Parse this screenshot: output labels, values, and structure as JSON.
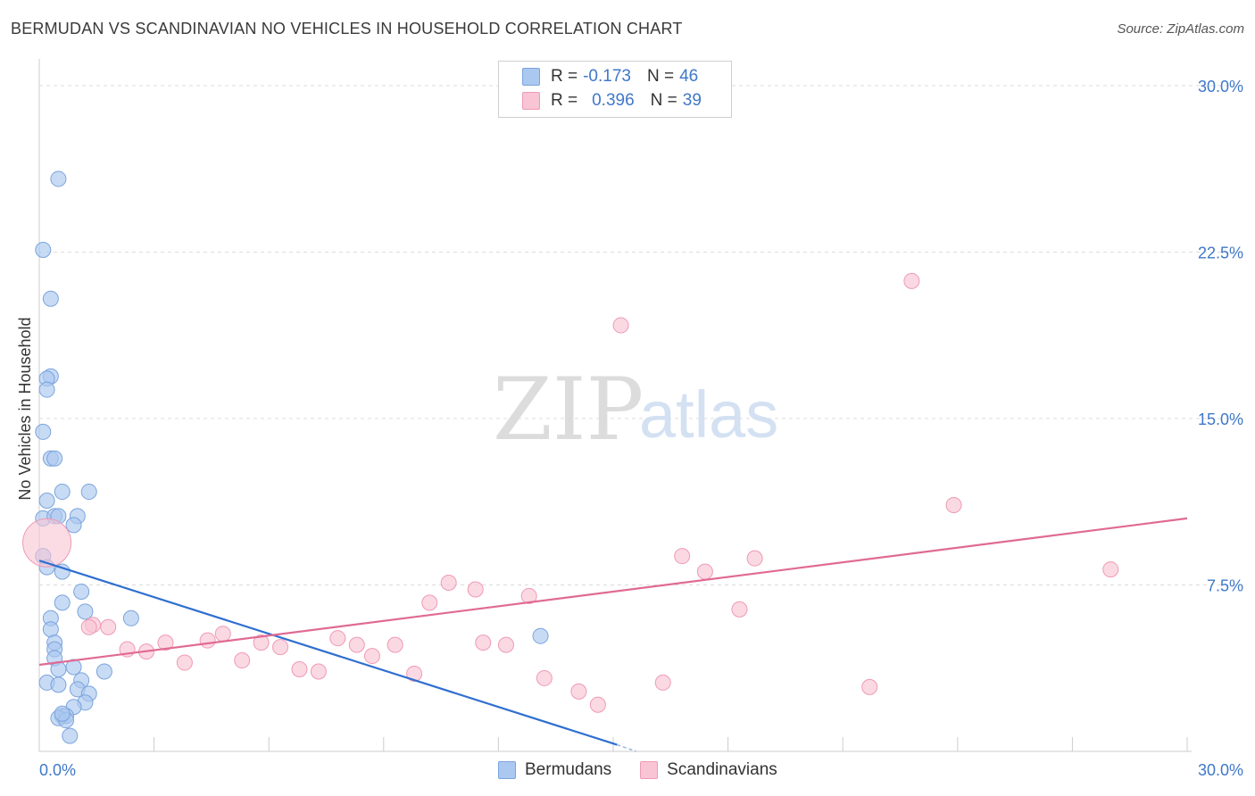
{
  "title": "BERMUDAN VS SCANDINAVIAN NO VEHICLES IN HOUSEHOLD CORRELATION CHART",
  "source": "Source: ZipAtlas.com",
  "watermark": {
    "zip": "ZIP",
    "atlas": "atlas"
  },
  "legend": {
    "rows": [
      {
        "r_label": "R =",
        "r_value": "-0.173",
        "n_label": "N =",
        "n_value": "46",
        "color": "#aac8f0",
        "border": "#7ba4dc"
      },
      {
        "r_label": "R =",
        "r_value": "0.396",
        "n_label": "N =",
        "n_value": "39",
        "color": "#f9c4d4",
        "border": "#ee9ab6"
      }
    ],
    "bottom": [
      {
        "label": "Bermudans",
        "color": "#aac8f0",
        "border": "#7ba4dc"
      },
      {
        "label": "Scandinavians",
        "color": "#f9c4d4",
        "border": "#ee9ab6"
      }
    ]
  },
  "chart_data": {
    "type": "scatter",
    "title": "BERMUDAN VS SCANDINAVIAN NO VEHICLES IN HOUSEHOLD CORRELATION CHART",
    "xlabel": "",
    "ylabel": "No Vehicles in Household",
    "xlim": [
      0,
      30
    ],
    "ylim": [
      0,
      30
    ],
    "x_tick_labels": [
      "0.0%",
      "30.0%"
    ],
    "y_tick_labels": [
      "7.5%",
      "15.0%",
      "22.5%",
      "30.0%"
    ],
    "y_ticks": [
      7.5,
      15.0,
      22.5,
      30.0
    ],
    "grid": true,
    "series": [
      {
        "name": "Bermudans",
        "color": "#aac8f0",
        "stroke": "#7ba4dc",
        "line_color": "#2f6fd0",
        "trend": {
          "x": [
            0,
            15.1
          ],
          "y": [
            8.6,
            0.3
          ]
        },
        "trend_dash": {
          "x": [
            15.1,
            15.6
          ],
          "y": [
            0.3,
            0.0
          ]
        },
        "points": [
          {
            "x": 0.5,
            "y": 25.8
          },
          {
            "x": 0.1,
            "y": 22.6
          },
          {
            "x": 0.3,
            "y": 20.4
          },
          {
            "x": 0.3,
            "y": 16.9
          },
          {
            "x": 0.2,
            "y": 16.8
          },
          {
            "x": 0.2,
            "y": 16.3
          },
          {
            "x": 0.1,
            "y": 14.4
          },
          {
            "x": 0.3,
            "y": 13.2
          },
          {
            "x": 0.4,
            "y": 13.2
          },
          {
            "x": 0.6,
            "y": 11.7
          },
          {
            "x": 1.3,
            "y": 11.7
          },
          {
            "x": 0.2,
            "y": 11.3
          },
          {
            "x": 0.1,
            "y": 10.5
          },
          {
            "x": 0.4,
            "y": 10.6
          },
          {
            "x": 0.5,
            "y": 10.6
          },
          {
            "x": 1.0,
            "y": 10.6
          },
          {
            "x": 0.9,
            "y": 10.2
          },
          {
            "x": 0.1,
            "y": 8.8
          },
          {
            "x": 0.2,
            "y": 8.3
          },
          {
            "x": 0.6,
            "y": 8.1
          },
          {
            "x": 1.1,
            "y": 7.2
          },
          {
            "x": 0.6,
            "y": 6.7
          },
          {
            "x": 1.2,
            "y": 6.3
          },
          {
            "x": 2.4,
            "y": 6.0
          },
          {
            "x": 0.3,
            "y": 6.0
          },
          {
            "x": 0.3,
            "y": 5.5
          },
          {
            "x": 0.4,
            "y": 4.9
          },
          {
            "x": 0.4,
            "y": 4.6
          },
          {
            "x": 0.4,
            "y": 4.2
          },
          {
            "x": 0.9,
            "y": 3.8
          },
          {
            "x": 0.5,
            "y": 3.7
          },
          {
            "x": 1.7,
            "y": 3.6
          },
          {
            "x": 0.2,
            "y": 3.1
          },
          {
            "x": 0.5,
            "y": 3.0
          },
          {
            "x": 1.1,
            "y": 3.2
          },
          {
            "x": 1.0,
            "y": 2.8
          },
          {
            "x": 1.3,
            "y": 2.6
          },
          {
            "x": 1.2,
            "y": 2.2
          },
          {
            "x": 0.9,
            "y": 2.0
          },
          {
            "x": 0.6,
            "y": 1.6
          },
          {
            "x": 0.7,
            "y": 1.6
          },
          {
            "x": 0.5,
            "y": 1.5
          },
          {
            "x": 0.7,
            "y": 1.4
          },
          {
            "x": 0.8,
            "y": 0.7
          },
          {
            "x": 13.1,
            "y": 5.2
          },
          {
            "x": 0.6,
            "y": 1.7
          }
        ]
      },
      {
        "name": "Scandinavians",
        "color": "#f9c4d4",
        "stroke": "#ee9ab6",
        "line_color": "#e06a93",
        "trend": {
          "x": [
            0,
            30
          ],
          "y": [
            3.9,
            10.5
          ]
        },
        "points": [
          {
            "x": 0.2,
            "y": 9.4,
            "big": true
          },
          {
            "x": 1.4,
            "y": 5.7
          },
          {
            "x": 1.3,
            "y": 5.6
          },
          {
            "x": 1.8,
            "y": 5.6
          },
          {
            "x": 2.3,
            "y": 4.6
          },
          {
            "x": 2.8,
            "y": 4.5
          },
          {
            "x": 3.3,
            "y": 4.9
          },
          {
            "x": 3.8,
            "y": 4.0
          },
          {
            "x": 4.4,
            "y": 5.0
          },
          {
            "x": 4.8,
            "y": 5.3
          },
          {
            "x": 5.3,
            "y": 4.1
          },
          {
            "x": 5.8,
            "y": 4.9
          },
          {
            "x": 6.3,
            "y": 4.7
          },
          {
            "x": 6.8,
            "y": 3.7
          },
          {
            "x": 7.3,
            "y": 3.6
          },
          {
            "x": 7.8,
            "y": 5.1
          },
          {
            "x": 8.3,
            "y": 4.8
          },
          {
            "x": 8.7,
            "y": 4.3
          },
          {
            "x": 9.3,
            "y": 4.8
          },
          {
            "x": 9.8,
            "y": 3.5
          },
          {
            "x": 10.2,
            "y": 6.7
          },
          {
            "x": 10.7,
            "y": 7.6
          },
          {
            "x": 11.4,
            "y": 7.3
          },
          {
            "x": 11.6,
            "y": 4.9
          },
          {
            "x": 12.2,
            "y": 4.8
          },
          {
            "x": 12.8,
            "y": 7.0
          },
          {
            "x": 13.2,
            "y": 3.3
          },
          {
            "x": 14.1,
            "y": 2.7
          },
          {
            "x": 14.6,
            "y": 2.1
          },
          {
            "x": 15.2,
            "y": 19.2
          },
          {
            "x": 16.3,
            "y": 3.1
          },
          {
            "x": 16.8,
            "y": 8.8
          },
          {
            "x": 17.4,
            "y": 8.1
          },
          {
            "x": 18.3,
            "y": 6.4
          },
          {
            "x": 18.7,
            "y": 8.7
          },
          {
            "x": 21.7,
            "y": 2.9
          },
          {
            "x": 22.8,
            "y": 21.2
          },
          {
            "x": 23.9,
            "y": 11.1
          },
          {
            "x": 28.0,
            "y": 8.2
          }
        ]
      }
    ]
  }
}
